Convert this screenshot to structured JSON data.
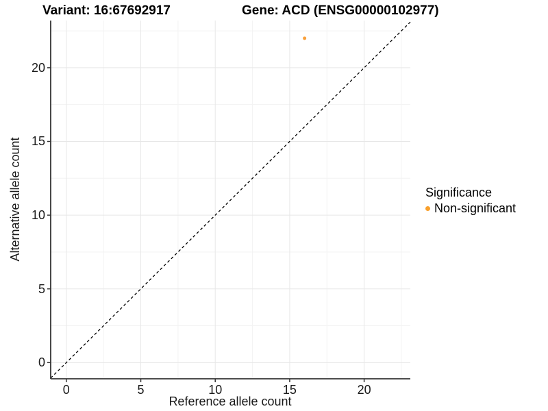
{
  "page": {
    "background": "#ffffff"
  },
  "chart_data": {
    "type": "scatter",
    "title_left": "Variant: 16:67692917",
    "title_right": "Gene: ACD (ENSG00000102977)",
    "xlabel": "Reference allele count",
    "ylabel": "Alternative allele count",
    "x_range": [
      -1.05,
      23.1
    ],
    "y_range": [
      -1.1,
      23.2
    ],
    "x_ticks": [
      0,
      5,
      10,
      15,
      20
    ],
    "y_ticks": [
      0,
      5,
      10,
      15,
      20
    ],
    "x_minor_ticks": [
      2.5,
      7.5,
      12.5,
      17.5,
      22.5
    ],
    "y_minor_ticks": [
      2.5,
      7.5,
      12.5,
      17.5,
      22.5
    ],
    "grid": true,
    "points": [
      {
        "x": 16,
        "y": 22,
        "series": "Non-significant",
        "color": "#F9A13C",
        "radius": 2.5
      }
    ],
    "reference_line": {
      "type": "identity",
      "slope": 1,
      "intercept": 0,
      "style": "dashed",
      "color": "#000000"
    },
    "legend": {
      "title": "Significance",
      "position": "right",
      "entries": [
        {
          "label": "Non-significant",
          "color": "#F9A02C"
        }
      ]
    },
    "colors": {
      "grid_major": "#E7E7E7",
      "grid_minor": "#F3F3F3",
      "axis_line": "#333333",
      "tick_mark": "#333333",
      "point": "#F9A13C"
    }
  }
}
